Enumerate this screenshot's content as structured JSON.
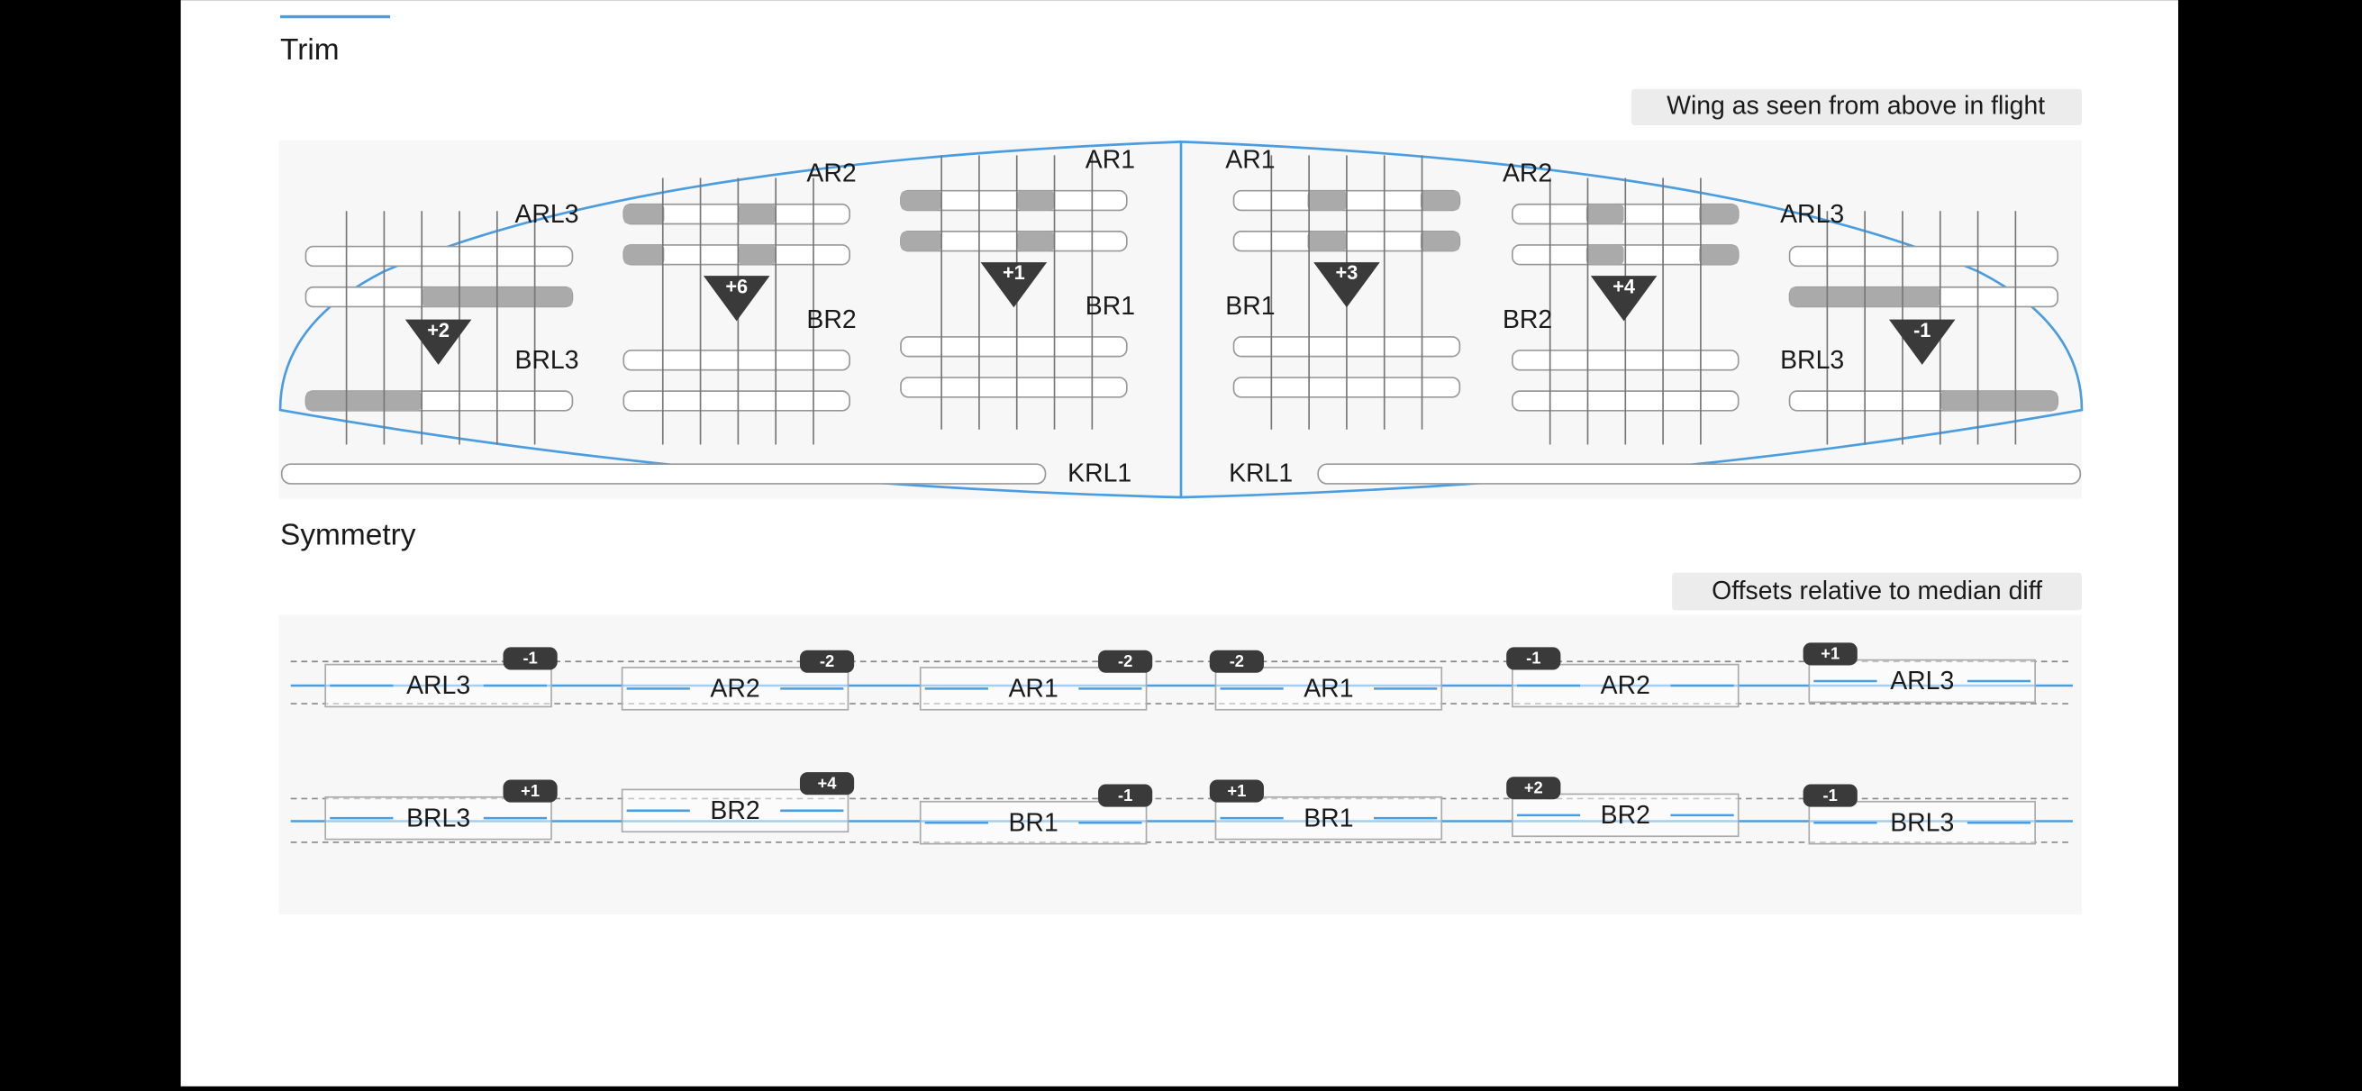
{
  "trim": {
    "title": "Trim",
    "note": "Wing as seen from above in flight",
    "groups": [
      {
        "top": "ARL3",
        "bottom": "BRL3",
        "badge": "+2"
      },
      {
        "top": "AR2",
        "bottom": "BR2",
        "badge": "+6"
      },
      {
        "top": "AR1",
        "bottom": "BR1",
        "badge": "+1"
      },
      {
        "top": "AR1",
        "bottom": "BR1",
        "badge": "+3"
      },
      {
        "top": "AR2",
        "bottom": "BR2",
        "badge": "+4"
      },
      {
        "top": "ARL3",
        "bottom": "BRL3",
        "badge": "-1"
      }
    ],
    "keel": [
      "KRL1",
      "KRL1"
    ]
  },
  "symmetry": {
    "title": "Symmetry",
    "note": "Offsets relative to median diff",
    "rows": [
      [
        {
          "label": "ARL3",
          "badge": "-1"
        },
        {
          "label": "AR2",
          "badge": "-2"
        },
        {
          "label": "AR1",
          "badge": "-2"
        },
        {
          "label": "AR1",
          "badge": "-2"
        },
        {
          "label": "AR2",
          "badge": "-1"
        },
        {
          "label": "ARL3",
          "badge": "+1"
        }
      ],
      [
        {
          "label": "BRL3",
          "badge": "+1"
        },
        {
          "label": "BR2",
          "badge": "+4"
        },
        {
          "label": "BR1",
          "badge": "-1"
        },
        {
          "label": "BR1",
          "badge": "+1"
        },
        {
          "label": "BR2",
          "badge": "+2"
        },
        {
          "label": "BRL3",
          "badge": "-1"
        }
      ]
    ]
  }
}
